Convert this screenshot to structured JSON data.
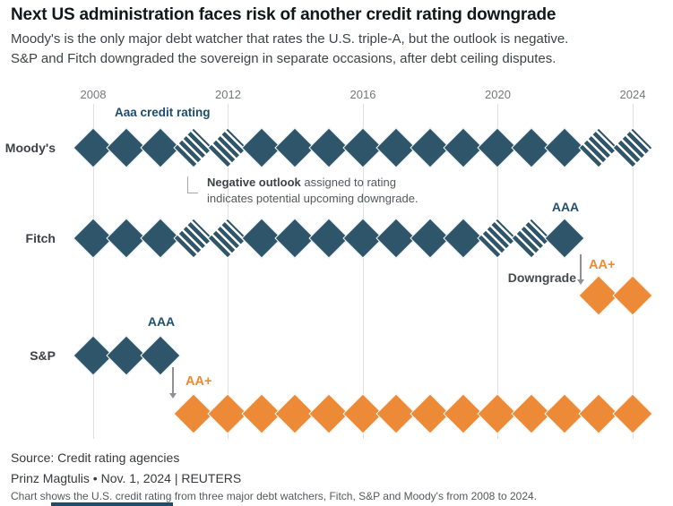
{
  "header": {
    "title": "Next US administration faces risk of another credit rating downgrade",
    "subtitle_line1": "Moody's is the only major debt watcher that rates the U.S. triple-A, but the outlook is negative.",
    "subtitle_line2": "S&P and Fitch downgraded the sovereign in separate occasions, after debt ceiling disputes."
  },
  "colors": {
    "aaa_blue": "#2e5569",
    "aa_plus_orange": "#ec8a38",
    "grid": "#dedfe1"
  },
  "chart_data": {
    "type": "scatter",
    "description": "Timeline of U.S. sovereign credit ratings, one diamond per year; hatched diamonds mark years with a negative outlook; orange diamonds mark the lower AA+ rating.",
    "x_range": [
      2008,
      2024
    ],
    "tick_years": [
      "2008",
      "2012",
      "2016",
      "2020",
      "2024"
    ],
    "series": [
      {
        "name": "Moody's",
        "rating_timeline": [
          {
            "from": 2008,
            "to": 2024,
            "rating": "Aaa"
          }
        ],
        "negative_outlook_years": [
          2011,
          2012,
          2023,
          2024
        ]
      },
      {
        "name": "Fitch",
        "rating_timeline": [
          {
            "from": 2008,
            "to": 2022,
            "rating": "AAA"
          },
          {
            "from": 2023,
            "to": 2024,
            "rating": "AA+"
          }
        ],
        "negative_outlook_years": [
          2011,
          2012,
          2020,
          2021
        ]
      },
      {
        "name": "S&P",
        "rating_timeline": [
          {
            "from": 2008,
            "to": 2010,
            "rating": "AAA"
          },
          {
            "from": 2011,
            "to": 2024,
            "rating": "AA+"
          }
        ],
        "negative_outlook_years": []
      }
    ]
  },
  "annotations": {
    "aaa_credit_rating": "Aaa credit rating",
    "negative_outlook_bold": "Negative outlook",
    "negative_outlook_rest": " assigned to rating",
    "negative_outlook_line2": "indicates potential upcoming downgrade.",
    "fitch_aaa": "AAA",
    "downgrade": "Downgrade",
    "fitch_aa_plus": "AA+",
    "sp_aaa": "AAA",
    "sp_aa_plus": "AA+"
  },
  "footer": {
    "source": "Source: Credit rating agencies",
    "byline": "Prinz Magtulis • Nov. 1, 2024 | REUTERS",
    "caption": "Chart shows the U.S. credit rating from three major debt watchers, Fitch, S&P and Moody's from 2008 to 2024."
  }
}
